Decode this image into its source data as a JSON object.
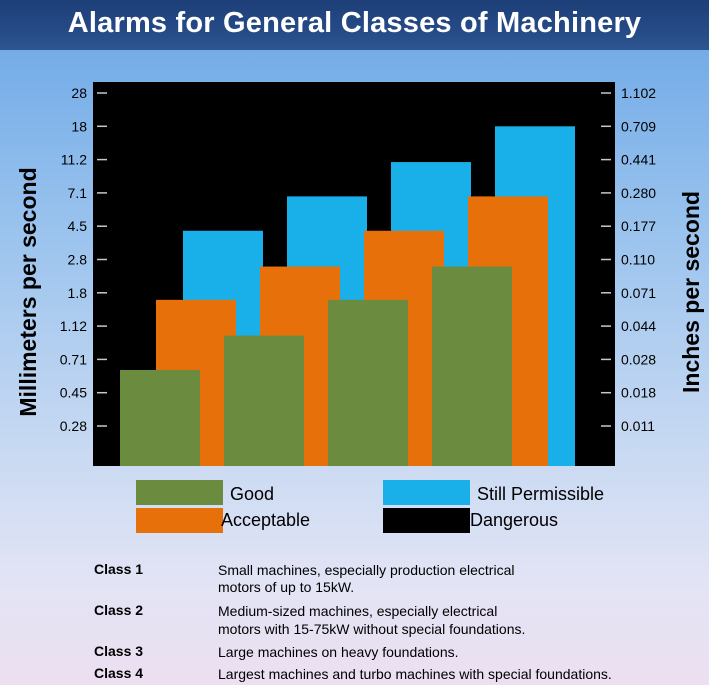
{
  "title": "Alarms for General Classes of Machinery",
  "colors": {
    "good": "#6b8c3e",
    "acceptable": "#e8700a",
    "still_permissible": "#19afe8",
    "dangerous": "#000000"
  },
  "legend": {
    "good": "Good",
    "acceptable": "Acceptable",
    "still_permissible": "Still Permissible",
    "dangerous": "Dangerous"
  },
  "chart_data": {
    "type": "bar",
    "categories": [
      "Class 1",
      "Class 2",
      "Class 3",
      "Class 4"
    ],
    "series": [
      {
        "name": "Good",
        "color": "#6b8c3e",
        "values": [
          0.71,
          1.12,
          1.8,
          2.8
        ]
      },
      {
        "name": "Acceptable",
        "color": "#e8700a",
        "values": [
          1.8,
          2.8,
          4.5,
          7.1
        ]
      },
      {
        "name": "Still Permissible",
        "color": "#19afe8",
        "values": [
          4.5,
          7.1,
          11.2,
          18
        ]
      }
    ],
    "background_zone": "Dangerous",
    "ylabel_left": "Millimeters per second",
    "ylabel_right": "Inches per second",
    "y_ticks_left": [
      "28",
      "18",
      "11.2",
      "7.1",
      "4.5",
      "2.8",
      "1.8",
      "1.12",
      "0.71",
      "0.45",
      "0.28"
    ],
    "y_ticks_right": [
      "1.102",
      "0.709",
      "0.441",
      "0.280",
      "0.177",
      "0.110",
      "0.071",
      "0.044",
      "0.028",
      "0.018",
      "0.011"
    ],
    "y_scale": "log",
    "grid": false,
    "legend_position": "bottom"
  },
  "classes": [
    {
      "name": "Class 1",
      "desc": [
        "Small machines, especially production electrical",
        "motors of up to 15kW."
      ]
    },
    {
      "name": "Class 2",
      "desc": [
        "Medium-sized machines, especially electrical",
        "motors with 15-75kW without special foundations."
      ]
    },
    {
      "name": "Class 3",
      "desc": [
        "Large machines on heavy foundations."
      ]
    },
    {
      "name": "Class 4",
      "desc": [
        "Largest machines and turbo machines with special foundations."
      ]
    }
  ]
}
